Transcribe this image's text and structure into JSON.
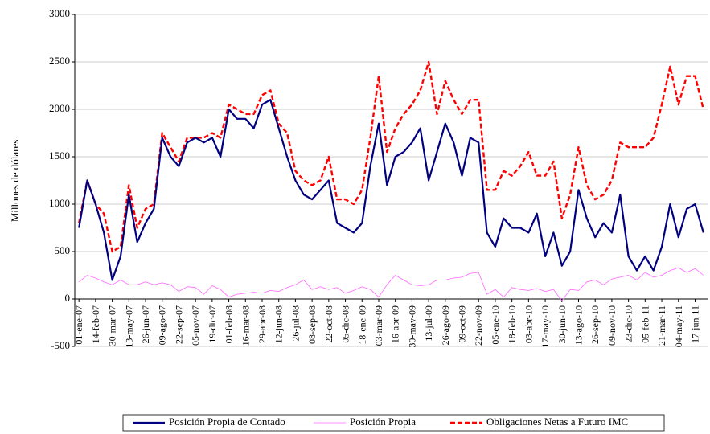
{
  "chart_data": {
    "type": "line",
    "y_label": "Millones de dólares",
    "categories": [
      "01-ene-07",
      null,
      "14-feb-07",
      null,
      "30-mar-07",
      null,
      "13-may-07",
      null,
      "26-jun-07",
      null,
      "09-ago-07",
      null,
      "22-sep-07",
      null,
      "05-nov-07",
      null,
      "19-dic-07",
      null,
      "01-feb-08",
      null,
      "16-mar-08",
      null,
      "29-abr-08",
      null,
      "12-jun-08",
      null,
      "26-jul-08",
      null,
      "08-sep-08",
      null,
      "22-oct-08",
      null,
      "05-dic-08",
      null,
      "18-ene-09",
      null,
      "03-mar-09",
      null,
      "16-abr-09",
      null,
      "30-may-09",
      null,
      "13-jul-09",
      null,
      "26-ago-09",
      null,
      "09-oct-09",
      null,
      "22-nov-09",
      null,
      "05-ene-10",
      null,
      "18-feb-10",
      null,
      "03-abr-10",
      null,
      "17-may-10",
      null,
      "30-jun-10",
      null,
      "13-ago-10",
      null,
      "26-sep-10",
      null,
      "09-nov-10",
      null,
      "23-dic-10",
      null,
      "05-feb-11",
      null,
      "21-mar-11",
      null,
      "04-may-11",
      null,
      "17-jun-11",
      null
    ],
    "series": [
      {
        "name": "Posición Propia de Contado",
        "color": "#000080",
        "width": 2.2,
        "dashed": false,
        "values": [
          750,
          1250,
          1000,
          700,
          200,
          450,
          1100,
          600,
          800,
          950,
          1700,
          1500,
          1400,
          1650,
          1700,
          1650,
          1700,
          1500,
          2000,
          1900,
          1900,
          1800,
          2050,
          2100,
          1800,
          1500,
          1250,
          1100,
          1050,
          1150,
          1250,
          800,
          750,
          700,
          800,
          1400,
          1850,
          1200,
          1500,
          1550,
          1650,
          1800,
          1250,
          1550,
          1850,
          1650,
          1300,
          1700,
          1650,
          700,
          550,
          850,
          750,
          750,
          700,
          900,
          450,
          700,
          350,
          500,
          1150,
          850,
          650,
          800,
          700,
          1100,
          450,
          300,
          450,
          300,
          550,
          1000,
          650,
          950,
          1000,
          700
        ]
      },
      {
        "name": "Posición Propia",
        "color": "#ff66ff",
        "width": 0.8,
        "dashed": false,
        "values": [
          180,
          250,
          220,
          180,
          150,
          200,
          150,
          150,
          180,
          150,
          170,
          150,
          80,
          130,
          120,
          50,
          140,
          100,
          20,
          50,
          60,
          70,
          60,
          90,
          80,
          120,
          150,
          200,
          100,
          130,
          100,
          120,
          60,
          90,
          130,
          100,
          20,
          150,
          250,
          200,
          150,
          140,
          150,
          200,
          200,
          220,
          230,
          270,
          280,
          50,
          100,
          20,
          120,
          100,
          90,
          110,
          80,
          100,
          -20,
          100,
          90,
          180,
          200,
          150,
          210,
          230,
          250,
          200,
          280,
          230,
          250,
          300,
          330,
          280,
          320,
          250
        ]
      },
      {
        "name": "Obligaciones Netas a Futuro IMC",
        "color": "#ff0000",
        "width": 2.4,
        "dashed": true,
        "values": [
          800,
          1250,
          1000,
          900,
          500,
          550,
          1200,
          750,
          950,
          1000,
          1750,
          1600,
          1450,
          1700,
          1700,
          1700,
          1750,
          1700,
          2050,
          2000,
          1950,
          1950,
          2150,
          2200,
          1850,
          1750,
          1350,
          1250,
          1200,
          1250,
          1500,
          1050,
          1050,
          1000,
          1150,
          1700,
          2350,
          1550,
          1800,
          1950,
          2050,
          2200,
          2500,
          1950,
          2300,
          2100,
          1950,
          2100,
          2100,
          1150,
          1150,
          1350,
          1300,
          1400,
          1550,
          1300,
          1300,
          1450,
          850,
          1100,
          1600,
          1200,
          1050,
          1100,
          1250,
          1650,
          1600,
          1600,
          1600,
          1700,
          2050,
          2450,
          2050,
          2350,
          2350,
          2000
        ]
      }
    ],
    "ylim": [
      -500,
      3000
    ],
    "yticks": [
      -500,
      0,
      500,
      1000,
      1500,
      2000,
      2500,
      3000
    ],
    "grid": true
  }
}
